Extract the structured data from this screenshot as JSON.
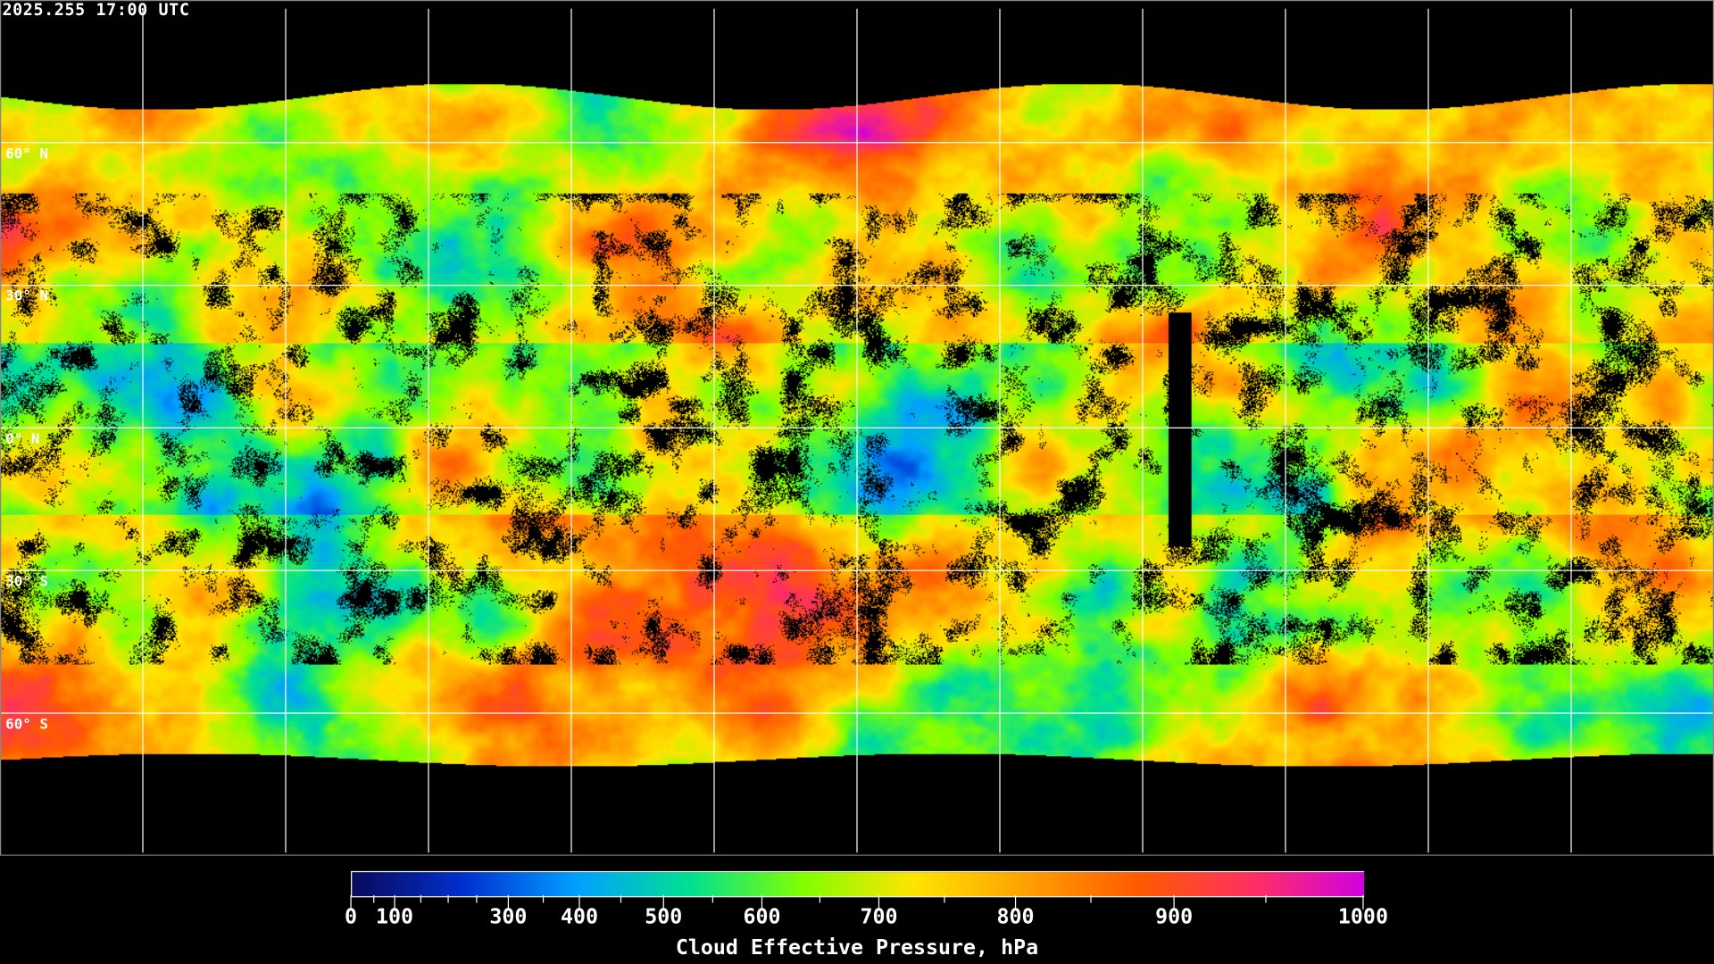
{
  "timestamp": "2025.255 17:00 UTC",
  "latitude_labels": [
    "60° N",
    "30° N",
    "0° N",
    "30° S",
    "60° S"
  ],
  "colorbar": {
    "label": "Cloud Effective Pressure, hPa",
    "min": 0,
    "max": 1000,
    "tick_labels": [
      "0",
      "100",
      "300",
      "400",
      "500",
      "600",
      "700",
      "800",
      "900",
      "1000"
    ],
    "colors": [
      "#0a0a5a",
      "#0030d0",
      "#00a0ff",
      "#00e090",
      "#80ff00",
      "#ffe400",
      "#ffa000",
      "#ff5a00",
      "#ff3060",
      "#d000e0"
    ]
  },
  "map": {
    "projection": "equirectangular",
    "grid_spacing_degrees": 30,
    "no_data_color": "#000000",
    "coastline_color": "#ffffff"
  }
}
